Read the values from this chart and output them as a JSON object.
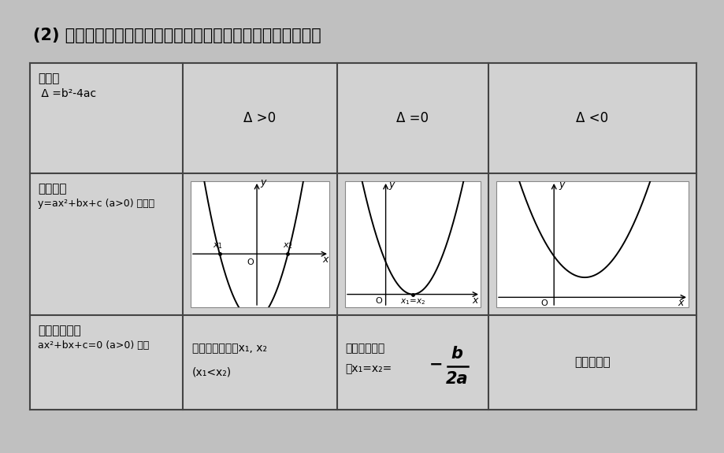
{
  "title": "(2) 一元二次不等式与相应的二次函数及一元二次方程的关系：",
  "bg_color": "#c0c0c0",
  "table_bg": "#d0d0d0",
  "border_color": "#444444",
  "title_fontsize": 15,
  "col0_row0_line1": "判别式",
  "col0_row0_line2": " Δ =b²-4ac",
  "col1_header": "Δ >0",
  "col2_header": "Δ =0",
  "col3_header": "Δ <0",
  "col0_row1_line1": "二次函数",
  "col0_row1_line2": "y=ax²+bx+c (a>0) 的图象",
  "col0_row2_line1": "一元二次方程",
  "col0_row2_line2": "ax²+bx+c=0 (a>0) 的根",
  "row2_col1_line1": "有两个相异实根x₁, x₂",
  "row2_col1_line2": "(x₁<x₂)",
  "row2_col2_line1": "有两个相等实",
  "row2_col2_line2": "根x₁=x₂=",
  "row2_col2_minus": "−",
  "row2_col2_num": "b",
  "row2_col2_den": "2a",
  "row2_col3": "没有实数根"
}
